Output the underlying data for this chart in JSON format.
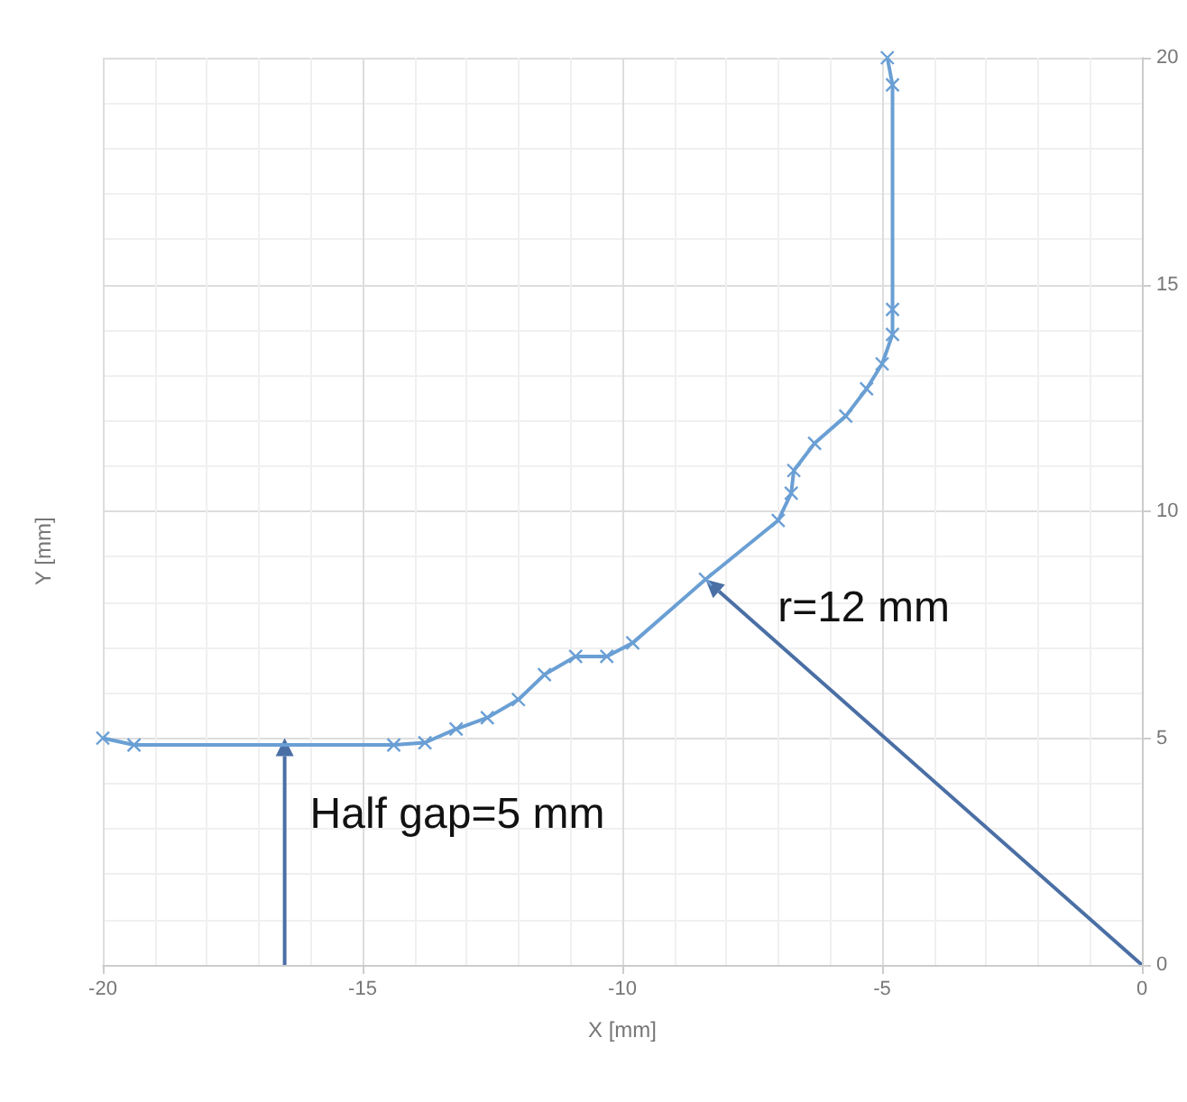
{
  "chart_data": {
    "type": "line",
    "xlabel": "X [mm]",
    "ylabel": "Y [mm]",
    "x": [
      -20,
      -19.4,
      -14.4,
      -13.8,
      -13.2,
      -12.6,
      -12.0,
      -11.5,
      -10.9,
      -10.3,
      -9.8,
      -8.4,
      -7.0,
      -6.75,
      -6.7,
      -6.3,
      -5.7,
      -5.3,
      -5.0,
      -4.8,
      -4.8,
      -4.8,
      -4.9
    ],
    "series": [
      {
        "color": "#6a9fd4",
        "values": [
          5.0,
          4.85,
          4.85,
          4.9,
          5.2,
          5.45,
          5.85,
          6.4,
          6.8,
          6.8,
          7.1,
          8.5,
          9.8,
          10.4,
          10.9,
          11.5,
          12.1,
          12.7,
          13.25,
          13.9,
          14.45,
          19.4,
          20.0
        ]
      }
    ],
    "xlim": [
      -20,
      0
    ],
    "ylim": [
      0,
      20
    ],
    "xticks": [
      -20,
      -15,
      -10,
      -5,
      0
    ],
    "yticks": [
      0,
      5,
      10,
      15,
      20
    ],
    "grid": true,
    "marker": "cross",
    "line_style": "solid",
    "annotations": [
      {
        "text": "Half gap=5 mm",
        "x": -16.5,
        "y": 5
      },
      {
        "text": "r=12 mm",
        "x": -8.4,
        "y": 8.5
      }
    ]
  }
}
